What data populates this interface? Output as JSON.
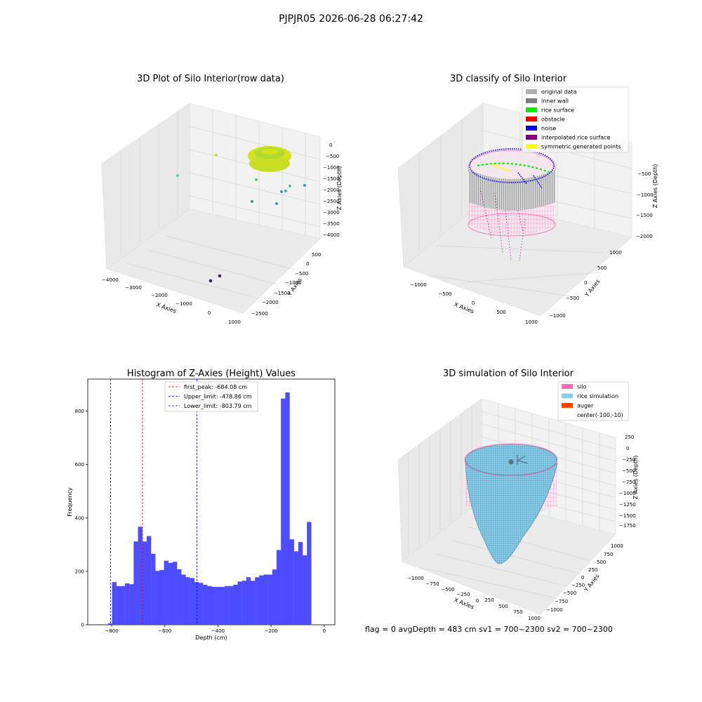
{
  "suptitle": "PJPJR05 2026-06-28 06:27:42",
  "footer": "flag = 0     avgDepth = 483 cm  sv1 = 700~2300  sv2 = 700~2300",
  "colors": {
    "hist_bar": "#4d4dff",
    "peak_line": "#e00000",
    "limit_line": "#0000dd",
    "silo": "#ff69b4",
    "rice_simulation": "#87ceeb",
    "auger": "#ff4500",
    "original_data": "#b0b0b0",
    "inner_wall": "#808080",
    "rice_surface": "#00ee00",
    "obstacle": "#ee0000",
    "noise": "#0000ee",
    "interpolated_rice_surface": "#800080",
    "symmetric_generated_points": "#ffff00"
  },
  "panel1": {
    "title": "3D Plot of Silo Interior(row data)",
    "xlabel": "X Axies",
    "ylabel": "Y Axies",
    "zlabel": "Z Axies (Depth)",
    "xticks": [
      "−4000",
      "−3000",
      "−2000",
      "−1000",
      "0",
      "1000"
    ],
    "yticks": [
      "500",
      "0",
      "−500",
      "−1000",
      "−1500",
      "−2000",
      "−2500"
    ],
    "zticks": [
      "0",
      "−500",
      "−1000",
      "−1500",
      "−2000",
      "−2500",
      "−3000",
      "−3500",
      "−4000"
    ]
  },
  "panel2": {
    "title": "3D classify of Silo Interior",
    "xlabel": "X Axies",
    "ylabel": "Y Axies",
    "zlabel": "Z Axies (Depth)",
    "xticks": [
      "−1000",
      "−500",
      "0",
      "500",
      "1000"
    ],
    "yticks": [
      "1000",
      "500",
      "0",
      "−500",
      "−1000"
    ],
    "zticks": [
      "−500",
      "−1000",
      "−1500",
      "−2000"
    ],
    "legend": [
      {
        "label": "original data",
        "color": "#b0b0b0"
      },
      {
        "label": "inner wall",
        "color": "#808080"
      },
      {
        "label": "rice surface",
        "color": "#00ee00"
      },
      {
        "label": "obstacle",
        "color": "#ee0000"
      },
      {
        "label": "noise",
        "color": "#0000ee"
      },
      {
        "label": "interpolated rice surface",
        "color": "#800080"
      },
      {
        "label": "symmetric generated points",
        "color": "#ffff00"
      }
    ]
  },
  "panel4": {
    "title": "3D simulation of Silo Interior",
    "xlabel": "X Axies",
    "ylabel": "Y Axies",
    "zlabel": "Z Axies (Depth)",
    "xticks": [
      "−1000",
      "−750",
      "−500",
      "−250",
      "0",
      "250",
      "500",
      "750",
      "1000"
    ],
    "yticks": [
      "1000",
      "750",
      "500",
      "250",
      "0",
      "−250",
      "−500",
      "−750",
      "−1000"
    ],
    "zticks": [
      "250",
      "0",
      "−250",
      "−500",
      "−750",
      "−1000",
      "−1250",
      "−1500",
      "−1750"
    ],
    "legend": [
      {
        "label": "silo",
        "color": "#ff69b4"
      },
      {
        "label": "rice simulation",
        "color": "#87ceeb"
      },
      {
        "label": "auger",
        "color": "#ff4500"
      },
      {
        "label": "center(-100,-10)",
        "color": ""
      }
    ]
  },
  "chart_data": {
    "type": "bar",
    "title": "Histogram of Z-Axies (Height) Values",
    "xlabel": "Depth (cm)",
    "ylabel": "Frequency",
    "xlim": [
      -890,
      40
    ],
    "ylim": [
      0,
      920
    ],
    "xticks": [
      -800,
      -600,
      -400,
      -200,
      0
    ],
    "xtick_labels": [
      "−800",
      "−600",
      "−400",
      "−200",
      "0"
    ],
    "yticks": [
      0,
      200,
      400,
      600,
      800
    ],
    "yticks_labels": [
      "0",
      "200",
      "400",
      "600",
      "800"
    ],
    "bin_start": -815,
    "bin_width": 16.3,
    "counts": [
      5,
      160,
      145,
      145,
      155,
      152,
      312,
      367,
      312,
      332,
      266,
      202,
      205,
      240,
      232,
      236,
      208,
      188,
      178,
      175,
      160,
      157,
      150,
      145,
      142,
      142,
      142,
      145,
      145,
      150,
      162,
      165,
      178,
      165,
      178,
      185,
      188,
      188,
      207,
      280,
      847,
      870,
      320,
      275,
      310,
      260,
      385
    ],
    "extra_bars": [
      {
        "x0": -855,
        "x1": -838,
        "value": 2
      }
    ],
    "vlines": [
      {
        "label": "first_peak: -684.08 cm",
        "x": -684.08,
        "color": "#e00000"
      },
      {
        "label": "Upper_limit: -478.86 cm",
        "x": -478.86,
        "color": "#0000dd"
      },
      {
        "label": "Lower_limit: -803.79 cm",
        "x": -803.79,
        "color": "#0000dd"
      }
    ],
    "legend_position": "upper center"
  }
}
